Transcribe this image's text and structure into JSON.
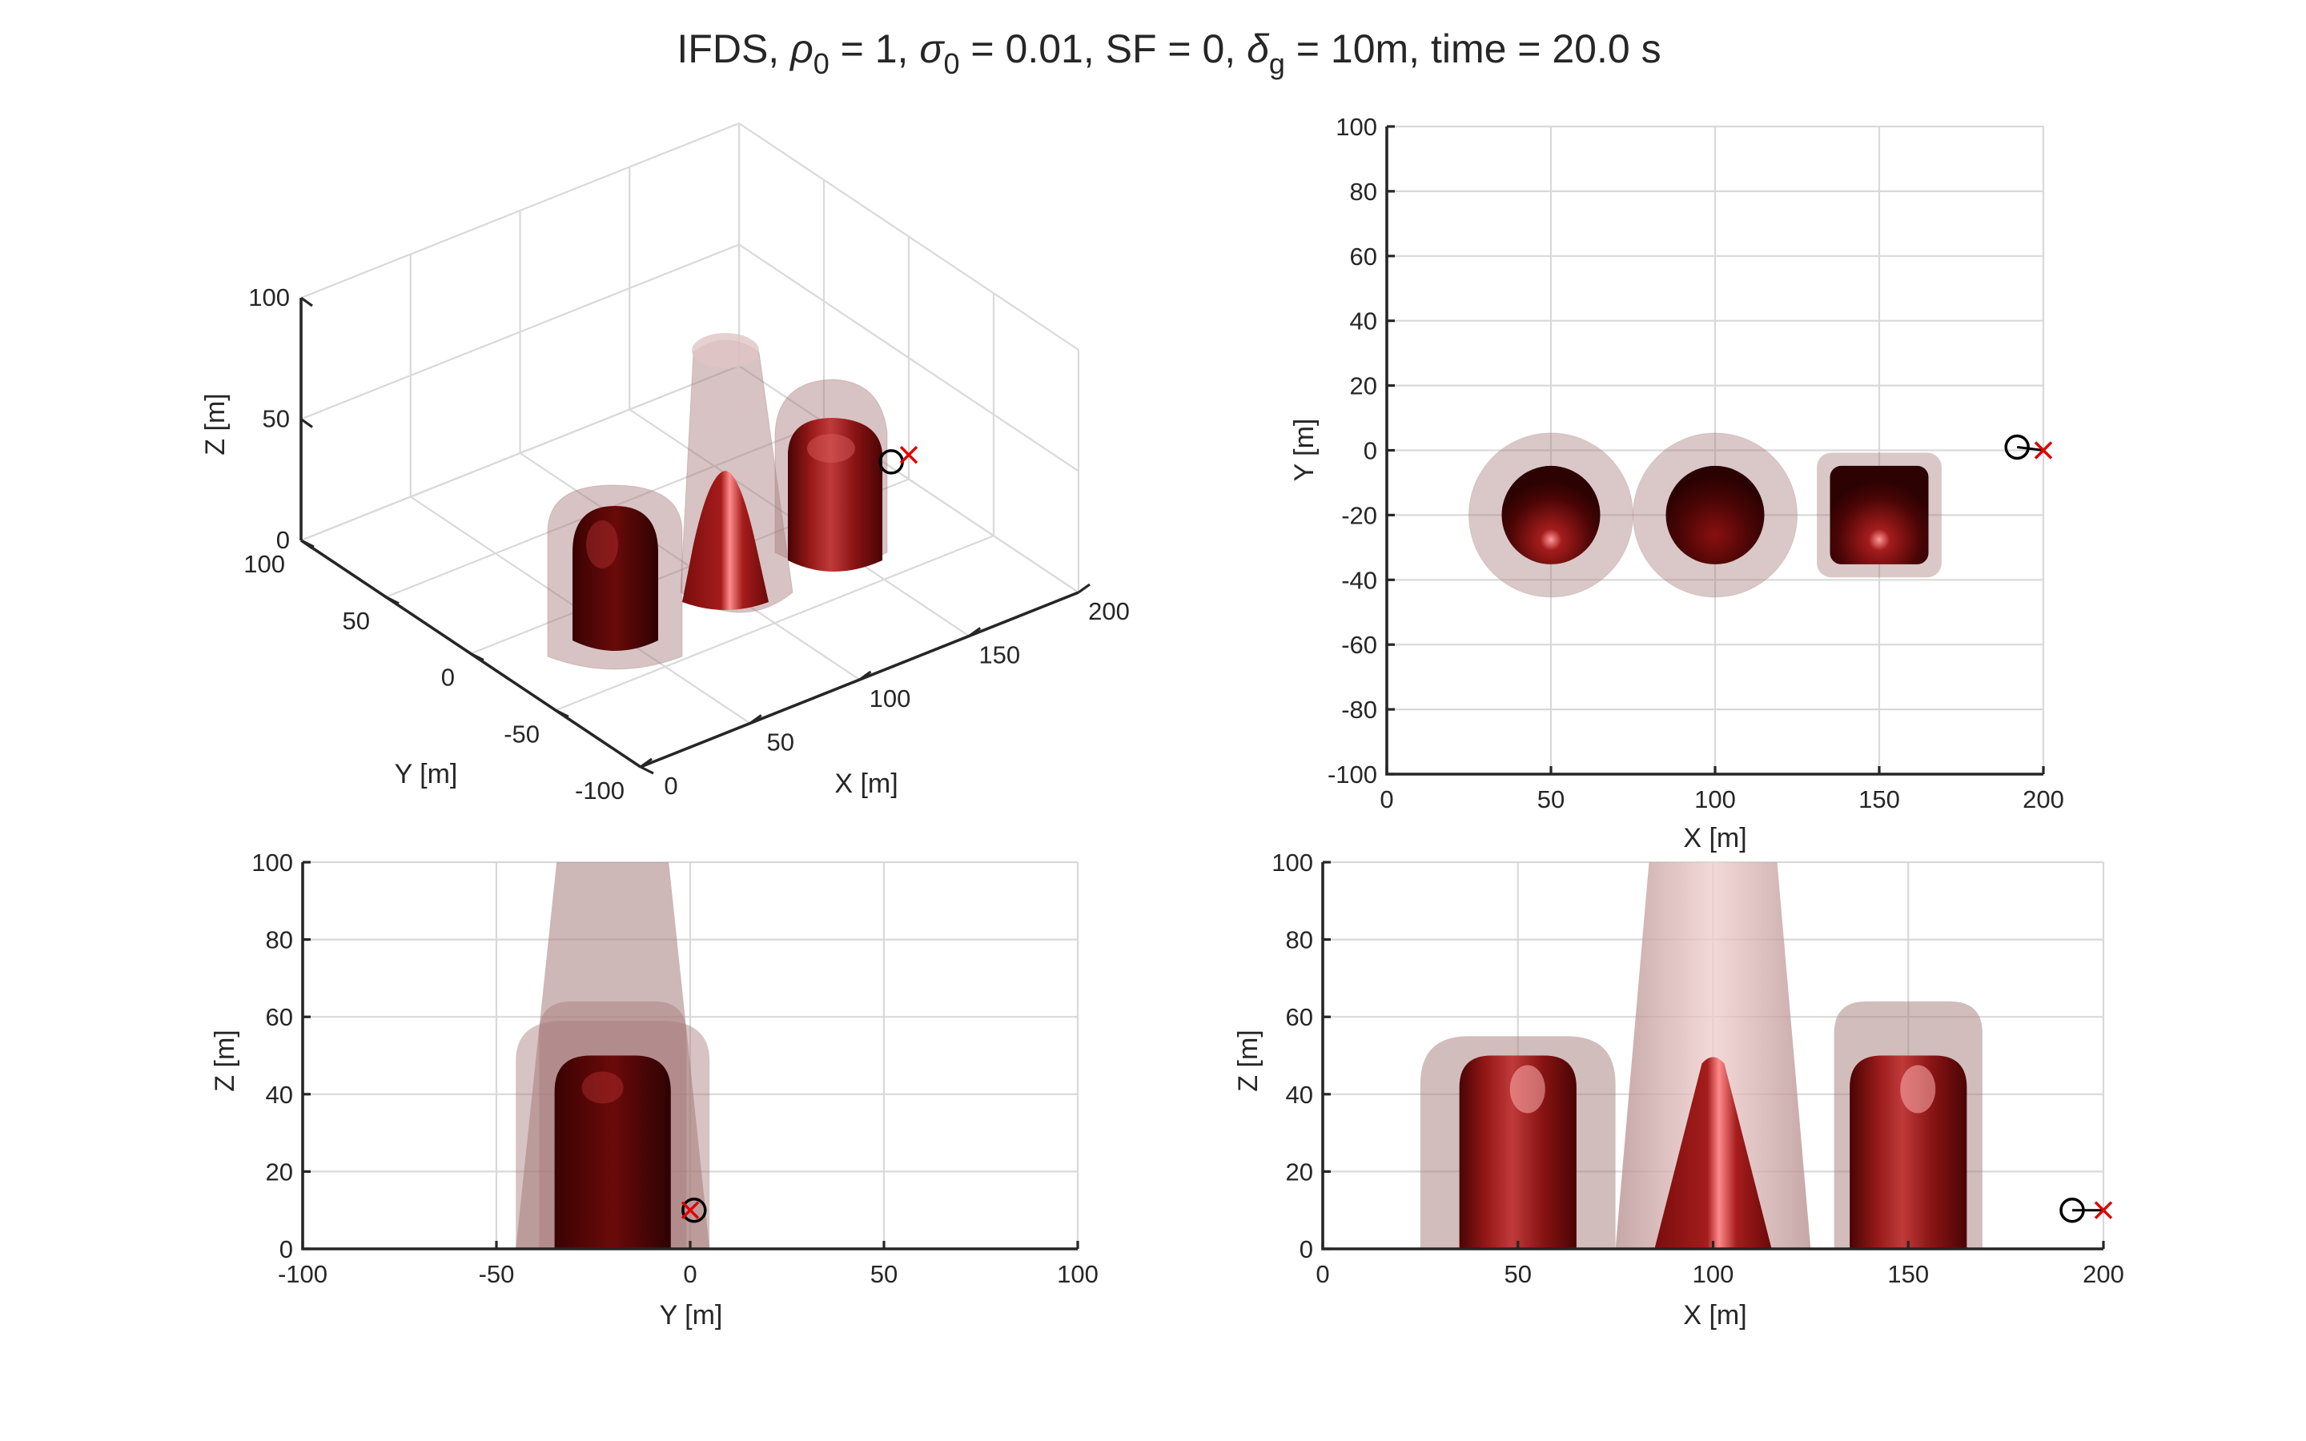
{
  "figure": {
    "title_parts": [
      "IFDS, ",
      "ρ",
      "0",
      " = 1, ",
      "σ",
      "0",
      " = 0.01, SF = 0, ",
      "δ",
      "g",
      " = 10m, time = 20.0 s"
    ],
    "colors": {
      "solid": "#8e1414",
      "solid_dark": "#3a0303",
      "envelope": "#a67b7b",
      "grid": "#d9d9d9",
      "axis": "#262626",
      "start_marker": "#000000",
      "goal_marker": "#e00000"
    }
  },
  "chart_data": [
    {
      "type": "scatter",
      "view": "3d",
      "xlabel": "X [m]",
      "ylabel": "Y [m]",
      "zlabel": "Z [m]",
      "xlim": [
        0,
        200
      ],
      "ylim": [
        -100,
        100
      ],
      "zlim": [
        0,
        100
      ],
      "xticks": [
        "0",
        "50",
        "100",
        "150",
        "200"
      ],
      "yticks": [
        "-100",
        "-50",
        "0",
        "50",
        "100"
      ],
      "zticks": [
        "0",
        "50",
        "100"
      ],
      "grid": true,
      "start_marker": {
        "x": 192,
        "y": 0,
        "z": 10
      },
      "goal_marker": {
        "x": 200,
        "y": 0,
        "z": 10
      },
      "obstacles": [
        {
          "shape": "capped-cylinder",
          "x": 50,
          "y": -20,
          "z_top": 50
        },
        {
          "shape": "cone",
          "x": 100,
          "y": -20,
          "z_top": 50
        },
        {
          "shape": "rounded-box",
          "x": 150,
          "y": -20,
          "z_top": 50
        }
      ]
    },
    {
      "type": "scatter",
      "view": "top (X-Y)",
      "xlabel": "X [m]",
      "ylabel": "Y [m]",
      "xlim": [
        0,
        200
      ],
      "ylim": [
        -100,
        100
      ],
      "xticks": [
        "0",
        "50",
        "100",
        "150",
        "200"
      ],
      "yticks": [
        "-100",
        "-80",
        "-60",
        "-40",
        "-20",
        "0",
        "20",
        "40",
        "60",
        "80",
        "100"
      ],
      "grid": true,
      "start_marker": {
        "x": 192,
        "y": 1
      },
      "goal_marker": {
        "x": 200,
        "y": 0
      },
      "obstacles": [
        {
          "shape": "circle",
          "x": 50,
          "y": -20,
          "radius": 15,
          "envelope_radius": 25
        },
        {
          "shape": "circle",
          "x": 100,
          "y": -20,
          "radius": 15,
          "envelope_radius": 25
        },
        {
          "shape": "rounded-square",
          "x": 150,
          "y": -20,
          "half_width": 15,
          "envelope_half_width": 19
        }
      ]
    },
    {
      "type": "scatter",
      "view": "side (Y-Z)",
      "xlabel": "Y [m]",
      "ylabel": "Z [m]",
      "xlim": [
        -100,
        100
      ],
      "ylim": [
        0,
        100
      ],
      "xticks": [
        "-100",
        "-50",
        "0",
        "50",
        "100"
      ],
      "yticks": [
        "0",
        "20",
        "40",
        "60",
        "80",
        "100"
      ],
      "grid": true,
      "start_marker": {
        "x": 1,
        "y": 10
      },
      "goal_marker": {
        "x": 0,
        "y": 10
      },
      "obstacles": [
        {
          "shape": "capped-cylinder",
          "y_min": -35,
          "y_max": -5,
          "z_top": 50
        },
        {
          "shape": "envelope-cone",
          "y_min": -45,
          "y_max": 5,
          "z_top": 100
        },
        {
          "shape": "envelope-box",
          "y_min": -39,
          "y_max": -1,
          "z_top": 64
        },
        {
          "shape": "envelope-cylinder",
          "y_min": -45,
          "y_max": 5,
          "z_top": 59
        }
      ]
    },
    {
      "type": "scatter",
      "view": "side (X-Z)",
      "xlabel": "X [m]",
      "ylabel": "Z [m]",
      "xlim": [
        0,
        200
      ],
      "ylim": [
        0,
        100
      ],
      "xticks": [
        "0",
        "50",
        "100",
        "150",
        "200"
      ],
      "yticks": [
        "0",
        "20",
        "40",
        "60",
        "80",
        "100"
      ],
      "grid": true,
      "start_marker": {
        "x": 192,
        "y": 10
      },
      "goal_marker": {
        "x": 200,
        "y": 10
      },
      "obstacles": [
        {
          "shape": "capped-cylinder",
          "x_min": 35,
          "x_max": 65,
          "z_top": 50,
          "env_x_min": 25,
          "env_x_max": 75,
          "env_z_top": 55
        },
        {
          "shape": "cone",
          "x_min": 85,
          "x_max": 115,
          "z_top": 50,
          "env_x_min": 75,
          "env_x_max": 125,
          "env_z_top": 100
        },
        {
          "shape": "rounded-box",
          "x_min": 135,
          "x_max": 165,
          "z_top": 50,
          "env_x_min": 131,
          "env_x_max": 169,
          "env_z_top": 64
        }
      ]
    }
  ]
}
